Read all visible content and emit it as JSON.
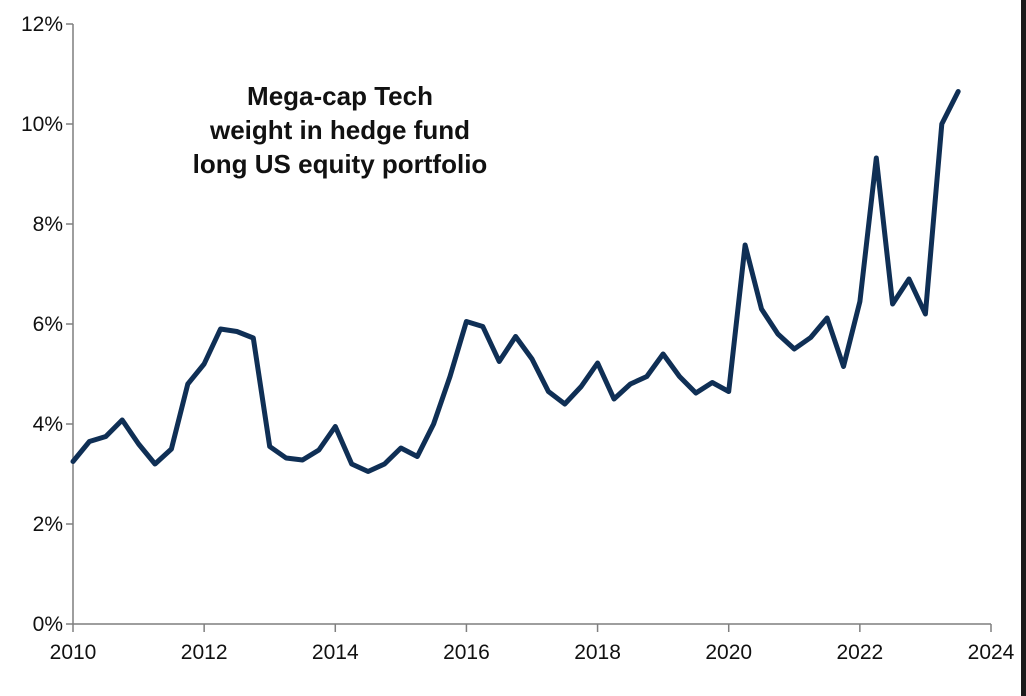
{
  "chart_data": {
    "type": "line",
    "title": "",
    "xlabel": "",
    "ylabel": "",
    "annotation": [
      "Mega-cap Tech",
      "weight in hedge fund",
      "long US equity portfolio"
    ],
    "xlim": [
      2010,
      2024
    ],
    "ylim": [
      0,
      12
    ],
    "x_ticks": [
      2010,
      2012,
      2014,
      2016,
      2018,
      2020,
      2022,
      2024
    ],
    "x_tick_labels": [
      "2010",
      "2012",
      "2014",
      "2016",
      "2018",
      "2020",
      "2022",
      "2024"
    ],
    "y_ticks": [
      0,
      2,
      4,
      6,
      8,
      10,
      12
    ],
    "y_tick_labels": [
      "0%",
      "2%",
      "4%",
      "6%",
      "8%",
      "10%",
      "12%"
    ],
    "grid": false,
    "line_color": "#0f2f55",
    "series": [
      {
        "x": [
          2010.0,
          2010.25,
          2010.5,
          2010.75,
          2011.0,
          2011.25,
          2011.5,
          2011.75,
          2012.0,
          2012.25,
          2012.5,
          2012.75,
          2013.0,
          2013.25,
          2013.5,
          2013.75,
          2014.0,
          2014.25,
          2014.5,
          2014.75,
          2015.0,
          2015.25,
          2015.5,
          2015.75,
          2016.0,
          2016.25,
          2016.5,
          2016.75,
          2017.0,
          2017.25,
          2017.5,
          2017.75,
          2018.0,
          2018.25,
          2018.5,
          2018.75,
          2019.0,
          2019.25,
          2019.5,
          2019.75,
          2020.0,
          2020.25,
          2020.5,
          2020.75,
          2021.0,
          2021.25,
          2021.5,
          2021.75,
          2022.0,
          2022.25,
          2022.5,
          2022.75,
          2023.0,
          2023.25,
          2023.5
        ],
        "values": [
          3.25,
          3.65,
          3.75,
          4.08,
          3.6,
          3.2,
          3.5,
          4.8,
          5.2,
          5.9,
          5.85,
          5.72,
          3.55,
          3.32,
          3.28,
          3.48,
          3.95,
          3.2,
          3.05,
          3.2,
          3.52,
          3.35,
          4.0,
          4.95,
          6.05,
          5.95,
          5.25,
          5.75,
          5.3,
          4.65,
          4.4,
          4.75,
          5.22,
          4.5,
          4.8,
          4.95,
          5.4,
          4.95,
          4.62,
          4.83,
          4.65,
          7.58,
          6.3,
          5.8,
          5.5,
          5.73,
          6.12,
          5.15,
          6.45,
          9.32,
          6.4,
          6.9,
          6.2,
          10.0,
          10.65
        ]
      }
    ]
  }
}
